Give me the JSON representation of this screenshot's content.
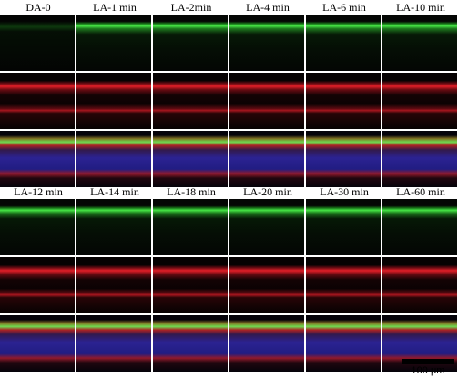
{
  "top_row": {
    "labels": [
      "DA-0",
      "LA-1 min",
      "LA-2min",
      "LA-4 min",
      "LA-6 min",
      "LA-10 min"
    ]
  },
  "bottom_row": {
    "labels": [
      "LA-12 min",
      "LA-14 min",
      "LA-18 min",
      "LA-20 min",
      "LA-30 min",
      "LA-60 min"
    ]
  },
  "channels": [
    "green",
    "red",
    "merge"
  ],
  "colors": {
    "green_channel": "#46e646",
    "red_channel": "#e11e28",
    "nuclear_counterstain": "#3228aa",
    "divider": "#ffffff"
  },
  "scale_bar": {
    "label": "100 μm"
  }
}
